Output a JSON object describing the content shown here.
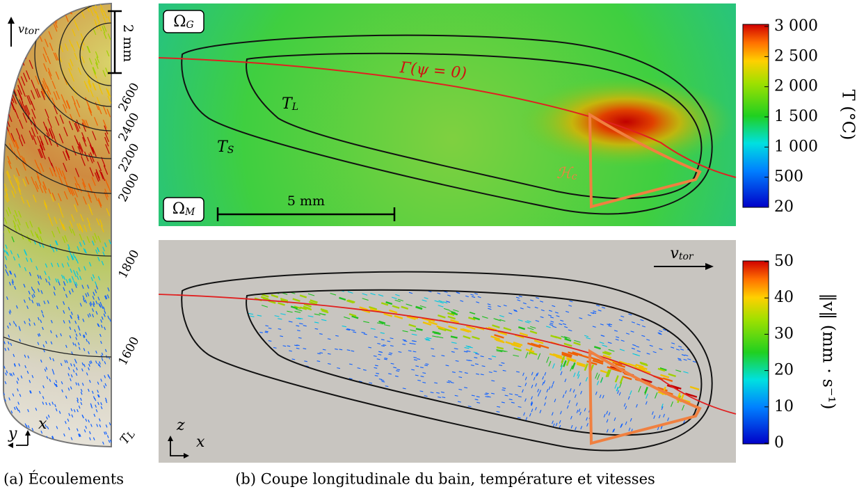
{
  "panel_a": {
    "velocity_label": {
      "main": "v",
      "sub": "tor"
    },
    "scale": "2 mm",
    "isotherms": [
      "2600",
      "2400",
      "2200",
      "2000",
      "1800",
      "1600"
    ],
    "liquidus": {
      "main": "T",
      "sub": "L"
    },
    "axes": [
      "y",
      "x"
    ],
    "caption": "(a) Écoulements"
  },
  "panel_b": {
    "temperature": {
      "domains": [
        {
          "main": "Ω",
          "sub": "G"
        },
        {
          "main": "Ω",
          "sub": "M"
        }
      ],
      "interface": "Γ(ψ = 0)",
      "liquidus": {
        "main": "T",
        "sub": "L"
      },
      "solidus": {
        "main": "T",
        "sub": "S"
      },
      "hc": {
        "main": "ℋ",
        "sub": "c"
      },
      "scale": "5 mm",
      "colorbar": {
        "ticks": [
          "3 000",
          "2 500",
          "2 000",
          "1 500",
          "1 000",
          "500",
          "20"
        ],
        "label": "T (°C)"
      }
    },
    "velocity": {
      "velocity_label": {
        "main": "v",
        "sub": "tor"
      },
      "axes": [
        "z",
        "x"
      ],
      "colorbar": {
        "ticks": [
          "50",
          "40",
          "30",
          "20",
          "10",
          "0"
        ],
        "label": "‖v‖ (mm · s⁻¹)"
      }
    },
    "caption": "(b) Coupe longitudinale du bain, température et vitesses"
  }
}
